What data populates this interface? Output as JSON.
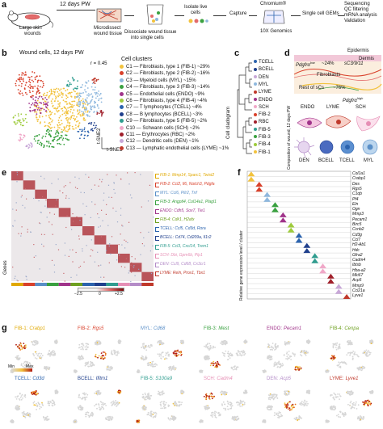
{
  "panel_a": {
    "label": "a",
    "time_label": "12 days PW",
    "mouse_label_1": "Large skin",
    "mouse_label_2": "wounds",
    "tissue_label_1": "Microdissect",
    "tissue_label_2": "wound tissue",
    "dissociate_label_1": "Dissociate wound tissue",
    "dissociate_label_2": "into single cells",
    "isolate_label_1": "Isolate live",
    "isolate_label_2": "cells",
    "capture_label": "Capture",
    "chromium_label": "Chromium®",
    "genomics_label": "10X Genomics",
    "gems_label": "Single cell GEMs",
    "steps": [
      "Sequencing",
      "QC filtering",
      "mRNA analysis",
      "Validation"
    ]
  },
  "panel_b": {
    "label": "b",
    "title": "Wound cells, 12 days PW",
    "r_label": "r = 0.45",
    "tsne2": "t-SNE2",
    "tsne1": "t-SNE1",
    "legend_title": "Cell clusters",
    "clusters": [
      {
        "id": "C1",
        "text": "C1 — Fibroblasts, type 1 (FIB-1) ~29%",
        "color": "#f2c23d"
      },
      {
        "id": "C2",
        "text": "C2 — Fibroblasts, type 2 (FIB-2) ~16%",
        "color": "#d9412b"
      },
      {
        "id": "C3",
        "text": "C3 — Myeloid cells (MYL) ~15%",
        "color": "#8fb8de"
      },
      {
        "id": "C4",
        "text": "C4 — Fibroblasts, type 3 (FIB-3) ~14%",
        "color": "#3aa140"
      },
      {
        "id": "C5",
        "text": "C5 — Endothelial cells (ENDO) ~9%",
        "color": "#a0338a"
      },
      {
        "id": "C6",
        "text": "C6 — Fibroblasts, type 4 (FIB-4) ~4%",
        "color": "#9ecb3c"
      },
      {
        "id": "C7",
        "text": "C7 — T lymphocytes (TCELL) ~4%",
        "color": "#2b63ae"
      },
      {
        "id": "C8",
        "text": "C8 — B lymphocytes (BCELL) ~3%",
        "color": "#1f3f8c"
      },
      {
        "id": "C9",
        "text": "C9 — Fibroblasts, type 5 (FIB-5) ~2%",
        "color": "#2f9d8f"
      },
      {
        "id": "C10",
        "text": "C10 — Schwann cells (SCH) ~2%",
        "color": "#f0a8c8"
      },
      {
        "id": "C11",
        "text": "C11 — Erythrocytes (RBC) ~2%",
        "color": "#a01f2a"
      },
      {
        "id": "C12",
        "text": "C12 — Dendritic cells (DEN) ~1%",
        "color": "#c8a8d8"
      },
      {
        "id": "C13",
        "text": "C13 — Lymphatic endothelial cells (LYME) ~1%",
        "color": "#c0392b"
      }
    ]
  },
  "panel_c": {
    "label": "c",
    "axis_title": "Cell cladogram",
    "leaves": [
      {
        "text": "TCELL",
        "color": "#2b63ae"
      },
      {
        "text": "BCELL",
        "color": "#1f3f8c"
      },
      {
        "text": "DEN",
        "color": "#c8a8d8"
      },
      {
        "text": "MYL",
        "color": "#8fb8de"
      },
      {
        "text": "LYME",
        "color": "#c0392b"
      },
      {
        "text": "ENDO",
        "color": "#a0338a"
      },
      {
        "text": "SCH",
        "color": "#f0a8c8"
      },
      {
        "text": "FIB-2",
        "color": "#d9412b"
      },
      {
        "text": "RBC",
        "color": "#a01f2a"
      },
      {
        "text": "FIB-5",
        "color": "#2f9d8f"
      },
      {
        "text": "FIB-3",
        "color": "#3aa140"
      },
      {
        "text": "FIB-4",
        "color": "#9ecb3c"
      },
      {
        "text": "FIB-1",
        "color": "#f2c23d"
      }
    ]
  },
  "panel_d": {
    "label": "d",
    "y_title": "Composition of wound, 12 days PW",
    "epidermis": "Epidermis",
    "dermis": "Dermis",
    "pdgfra_low": "Pdgfrα",
    "pdgfra_low_sup": "low",
    "pct_24": "~24%",
    "pct_76": "~76%",
    "sc3": "sC3/9/11",
    "fibroblasts": "Fibroblasts",
    "rest_of_scs": "Rest of sCs",
    "pdgfra_high": "Pdgfrα",
    "pdgfra_high_sup": "high",
    "cells_row1": [
      "ENDO",
      "LYME",
      "SCH"
    ],
    "cells_row2": [
      "DEN",
      "BCELL",
      "TCELL",
      "MYL"
    ]
  },
  "panel_e": {
    "label": "e",
    "genes_label": "Genes",
    "scale_min": "−2.5",
    "scale_zero": "0",
    "scale_max": "+2.5",
    "rows": [
      {
        "text": "FIB-1: Mmp14, Sparc1, Twist2",
        "color": "#e0a800"
      },
      {
        "text": "FIB-2: Ccl2, Il6, Notch3, Pdgfa",
        "color": "#d9412b"
      },
      {
        "text": "MYL: Ccl6, Pilr2, Tnf",
        "color": "#5a8fc8"
      },
      {
        "text": "FIB-3: Angptl4, Col14a1, Plagl1",
        "color": "#3aa140"
      },
      {
        "text": "ENDO: Cdh5, Sox7, Tie1",
        "color": "#a0338a"
      },
      {
        "text": "FIB-4: Cdk1, H2afx",
        "color": "#6ea020"
      },
      {
        "text": "TCELL: Ccl5, Cd3d, Rora",
        "color": "#2b63ae"
      },
      {
        "text": "BCELL: Cd74, Cd209a, Il1r2",
        "color": "#1f3f8c"
      },
      {
        "text": "FIB-5: Ccl3, Cxcl14, Trem1",
        "color": "#2f9d8f"
      },
      {
        "text": "SCH: Dbi, Gpm6b, Plp1",
        "color": "#e68fb5"
      },
      {
        "text": "DEN: Ccl9, Cd68, Cx3cr1",
        "color": "#b48cc8"
      },
      {
        "text": "LYME: Reln, Prox1, Tbx1",
        "color": "#c0392b"
      }
    ]
  },
  "panel_f": {
    "label": "f",
    "y_title": "Relative gene expression level / cluster",
    "genes": [
      "Col1a1",
      "Crabp1",
      "Des",
      "Rgs5",
      "C1qb",
      "Pf4",
      "Eln",
      "Ogn",
      "Mmp3",
      "Pecam1",
      "Birc5",
      "Ccnb2",
      "Cd3g",
      "Ccl7",
      "H2-Ab1",
      "Hdc",
      "Gfra2",
      "Cadm4",
      "Ibtsb",
      "Hba-a2",
      "Mki67",
      "Acp5",
      "Mmp9",
      "Ccl21a",
      "Lyve1"
    ]
  },
  "panel_g": {
    "label": "g",
    "legend_min": "Min",
    "legend_max": "Max",
    "maps": [
      {
        "pop": "FIB-1:",
        "gene": "Crabp1",
        "color": "#e0a800"
      },
      {
        "pop": "FIB-2:",
        "gene": "Rgs5",
        "color": "#d9412b"
      },
      {
        "pop": "MYL:",
        "gene": "Cd68",
        "color": "#5a8fc8"
      },
      {
        "pop": "FIB-3:",
        "gene": "Mest",
        "color": "#3aa140"
      },
      {
        "pop": "ENDO:",
        "gene": "Pecam1",
        "color": "#a0338a"
      },
      {
        "pop": "FIB-4:",
        "gene": "Cenpa",
        "color": "#6ea020"
      },
      {
        "pop": "TCELL:",
        "gene": "Cd3d",
        "color": "#2b63ae"
      },
      {
        "pop": "BCELL:",
        "gene": "Ifitm1",
        "color": "#1f3f8c"
      },
      {
        "pop": "FIB-5:",
        "gene": "S100a9",
        "color": "#2f9d8f"
      },
      {
        "pop": "SCH:",
        "gene": "Cadm4",
        "color": "#e68fb5"
      },
      {
        "pop": "DEN:",
        "gene": "Acp5",
        "color": "#b48cc8"
      },
      {
        "pop": "LYME:",
        "gene": "Lyve1",
        "color": "#c0392b"
      }
    ]
  }
}
